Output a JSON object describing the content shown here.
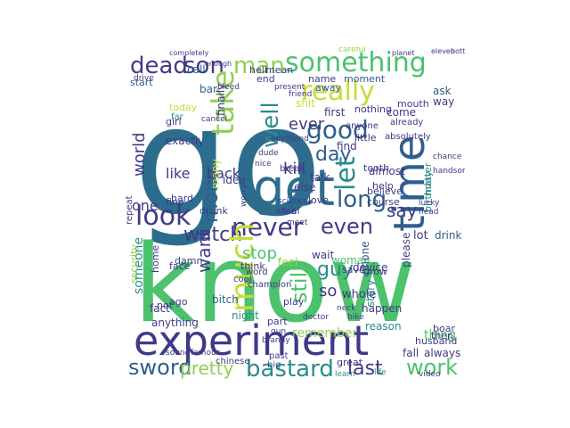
{
  "word_cloud": {
    "colors": {
      "teal_dark": "#2c6d8e",
      "green": "#4cc26d",
      "green_light": "#8fd14f",
      "purple": "#3f3a87",
      "blue": "#2e5e8c",
      "yellow": "#c7dc3a",
      "teal": "#2a8c8a"
    },
    "words": [
      {
        "text": "go",
        "color": "#2c6d8e"
      },
      {
        "text": "know",
        "color": "#4cc26d"
      },
      {
        "text": "experiment",
        "color": "#3f3a87"
      },
      {
        "text": "time",
        "color": "#2e5e8c"
      },
      {
        "text": "get",
        "color": "#2c6d8e"
      },
      {
        "text": "something",
        "color": "#4cc26d"
      },
      {
        "text": "dead",
        "color": "#3f3a87"
      },
      {
        "text": "son",
        "color": "#3f3a87"
      },
      {
        "text": "man",
        "color": "#8fd14f"
      },
      {
        "text": "really",
        "color": "#c7dc3a"
      },
      {
        "text": "take",
        "color": "#8fd14f"
      },
      {
        "text": "good",
        "color": "#2e5e8c"
      },
      {
        "text": "day",
        "color": "#2e5e8c"
      },
      {
        "text": "well",
        "color": "#2a8c8a"
      },
      {
        "text": "let",
        "color": "#2a8c8a"
      },
      {
        "text": "long",
        "color": "#2e5e8c"
      },
      {
        "text": "look",
        "color": "#3f3a87"
      },
      {
        "text": "never",
        "color": "#3f3a87"
      },
      {
        "text": "even",
        "color": "#3f3a87"
      },
      {
        "text": "watch",
        "color": "#3f3a87"
      },
      {
        "text": "much",
        "color": "#c7dc3a"
      },
      {
        "text": "mom",
        "color": "#2e5e8c"
      },
      {
        "text": "stop",
        "color": "#4cc26d"
      },
      {
        "text": "say",
        "color": "#3f3a87"
      },
      {
        "text": "guy",
        "color": "#2a8c8a"
      },
      {
        "text": "want",
        "color": "#3f3a87"
      },
      {
        "text": "still",
        "color": "#4cc26d"
      },
      {
        "text": "sword",
        "color": "#2e5e8c"
      },
      {
        "text": "pretty",
        "color": "#8fd14f"
      },
      {
        "text": "bastard",
        "color": "#2a8c8a"
      },
      {
        "text": "last",
        "color": "#3f3a87"
      },
      {
        "text": "work",
        "color": "#4cc26d"
      },
      {
        "text": "ever",
        "color": "#3f3a87"
      },
      {
        "text": "kill",
        "color": "#3f3a87"
      },
      {
        "text": "world",
        "color": "#3f3a87"
      },
      {
        "text": "like",
        "color": "#3f3a87"
      },
      {
        "text": "back",
        "color": "#3f3a87"
      },
      {
        "text": "one",
        "color": "#3f3a87"
      },
      {
        "text": "so",
        "color": "#3f3a87"
      },
      {
        "text": "remember",
        "color": "#8fd14f"
      },
      {
        "text": "someone",
        "color": "#2a8c8a"
      },
      {
        "text": "thing",
        "color": "#4cc26d"
      },
      {
        "text": "always",
        "color": "#3f3a87"
      },
      {
        "text": "reason",
        "color": "#2a8c8a"
      },
      {
        "text": "happen",
        "color": "#3f3a87"
      },
      {
        "text": "big",
        "color": "#2e5e8c"
      },
      {
        "text": "exactly",
        "color": "#3f3a87"
      },
      {
        "text": "name",
        "color": "#3f3a87"
      },
      {
        "text": "moment",
        "color": "#2e5e8c"
      },
      {
        "text": "ask",
        "color": "#2e5e8c"
      },
      {
        "text": "finally",
        "color": "#3f3a87"
      },
      {
        "text": "today",
        "color": "#c7dc3a"
      },
      {
        "text": "bar",
        "color": "#2e5e8c"
      },
      {
        "text": "call",
        "color": "#2e5e8c"
      },
      {
        "text": "hell",
        "color": "#3f3a87"
      },
      {
        "text": "mean",
        "color": "#3f3a87"
      },
      {
        "text": "end",
        "color": "#3f3a87"
      },
      {
        "text": "start",
        "color": "#2e5e8c"
      },
      {
        "text": "girl",
        "color": "#3f3a87"
      },
      {
        "text": "far",
        "color": "#2a8c8a"
      },
      {
        "text": "many",
        "color": "#c7dc3a"
      },
      {
        "text": "idea",
        "color": "#3f3a87"
      },
      {
        "text": "talk",
        "color": "#3f3a87"
      },
      {
        "text": "else",
        "color": "#3f3a87"
      },
      {
        "text": "find",
        "color": "#3f3a87"
      },
      {
        "text": "almost",
        "color": "#3f3a87"
      },
      {
        "text": "believe",
        "color": "#3f3a87"
      },
      {
        "text": "help",
        "color": "#3f3a87"
      },
      {
        "text": "love",
        "color": "#3f3a87"
      },
      {
        "text": "wait",
        "color": "#3f3a87"
      },
      {
        "text": "woman",
        "color": "#4cc26d"
      },
      {
        "text": "device",
        "color": "#3f3a87"
      },
      {
        "text": "lot",
        "color": "#3f3a87"
      },
      {
        "text": "drink",
        "color": "#2e5e8c"
      },
      {
        "text": "phone",
        "color": "#2e5e8c"
      },
      {
        "text": "please",
        "color": "#3f3a87"
      },
      {
        "text": "story",
        "color": "#2a8c8a"
      },
      {
        "text": "think",
        "color": "#3f3a87"
      },
      {
        "text": "word",
        "color": "#3f3a87"
      },
      {
        "text": "feel",
        "color": "#8fd14f"
      },
      {
        "text": "whole",
        "color": "#3f3a87"
      },
      {
        "text": "play",
        "color": "#3f3a87"
      },
      {
        "text": "save",
        "color": "#3f3a87"
      },
      {
        "text": "grow",
        "color": "#3f3a87"
      },
      {
        "text": "night",
        "color": "#2a8c8a"
      },
      {
        "text": "part",
        "color": "#3f3a87"
      },
      {
        "text": "bitch",
        "color": "#2e5e8c"
      },
      {
        "text": "anything",
        "color": "#3f3a87"
      },
      {
        "text": "fact",
        "color": "#3f3a87"
      },
      {
        "text": "fall",
        "color": "#3f3a87"
      },
      {
        "text": "great",
        "color": "#3f3a87"
      },
      {
        "text": "husband",
        "color": "#3f3a87"
      },
      {
        "text": "boar",
        "color": "#3f3a87"
      },
      {
        "text": "then",
        "color": "#3f3a87"
      },
      {
        "text": "chinese",
        "color": "#3f3a87"
      },
      {
        "text": "past",
        "color": "#3f3a87"
      },
      {
        "text": "learn",
        "color": "#2a8c8a"
      },
      {
        "text": "life",
        "color": "#2a8c8a"
      },
      {
        "text": "way",
        "color": "#3f3a87"
      },
      {
        "text": "come",
        "color": "#3f3a87"
      },
      {
        "text": "mouth",
        "color": "#3f3a87"
      },
      {
        "text": "first",
        "color": "#3f3a87"
      },
      {
        "text": "nothing",
        "color": "#3f3a87"
      },
      {
        "text": "shit",
        "color": "#c7dc3a"
      },
      {
        "text": "away",
        "color": "#2e5e8c"
      },
      {
        "text": "little",
        "color": "#3f3a87"
      },
      {
        "text": "tooth",
        "color": "#3f3a87"
      },
      {
        "text": "course",
        "color": "#3f3a87"
      },
      {
        "text": "steal",
        "color": "#3f3a87"
      },
      {
        "text": "damn",
        "color": "#3f3a87"
      },
      {
        "text": "face",
        "color": "#3f3a87"
      },
      {
        "text": "home",
        "color": "#3f3a87"
      },
      {
        "text": "ago",
        "color": "#3f3a87"
      },
      {
        "text": "not",
        "color": "#3f3a87"
      },
      {
        "text": "fine",
        "color": "#3f3a87"
      },
      {
        "text": "hard",
        "color": "#3f3a87"
      },
      {
        "text": "drunk",
        "color": "#3f3a87"
      },
      {
        "text": "security",
        "color": "#8fd14f"
      },
      {
        "text": "repeat",
        "color": "#3f3a87"
      },
      {
        "text": "birthday",
        "color": "#2a8c8a"
      },
      {
        "text": "matter",
        "color": "#2a8c8a"
      },
      {
        "text": "lab",
        "color": "#3f3a87"
      },
      {
        "text": "break",
        "color": "#3f3a87"
      },
      {
        "text": "already",
        "color": "#3f3a87"
      },
      {
        "text": "anyone",
        "color": "#3f3a87"
      },
      {
        "text": "absolutely",
        "color": "#3f3a87"
      },
      {
        "text": "eleven",
        "color": "#3f3a87"
      },
      {
        "text": "bottle",
        "color": "#3f3a87"
      },
      {
        "text": "bullet",
        "color": "#3f3a87"
      },
      {
        "text": "planet",
        "color": "#3f3a87"
      },
      {
        "text": "careful",
        "color": "#8fd14f"
      },
      {
        "text": "dude",
        "color": "#3f3a87"
      },
      {
        "text": "nice",
        "color": "#3f3a87"
      },
      {
        "text": "boyfriend",
        "color": "#3f3a87"
      },
      {
        "text": "cool",
        "color": "#3f3a87"
      },
      {
        "text": "champion",
        "color": "#3f3a87"
      },
      {
        "text": "neck",
        "color": "#3f3a87"
      },
      {
        "text": "doctor",
        "color": "#3f3a87"
      },
      {
        "text": "bike",
        "color": "#3f3a87"
      },
      {
        "text": "famous",
        "color": "#3f3a87"
      },
      {
        "text": "sound",
        "color": "#3f3a87"
      },
      {
        "text": "video",
        "color": "#3f3a87"
      },
      {
        "text": "chance",
        "color": "#3f3a87"
      },
      {
        "text": "handsome",
        "color": "#3f3a87"
      },
      {
        "text": "lucky",
        "color": "#3f3a87"
      },
      {
        "text": "head",
        "color": "#3f3a87"
      },
      {
        "text": "science",
        "color": "#3f3a87"
      },
      {
        "text": "worry",
        "color": "#3f3a87"
      },
      {
        "text": "meet",
        "color": "#3f3a87"
      },
      {
        "text": "brandy",
        "color": "#3f3a87"
      },
      {
        "text": "gun",
        "color": "#3f3a87"
      },
      {
        "text": "friend",
        "color": "#3f3a87"
      },
      {
        "text": "cancel",
        "color": "#3f3a87"
      },
      {
        "text": "bleed",
        "color": "#3f3a87"
      },
      {
        "text": "present",
        "color": "#3f3a87"
      },
      {
        "text": "drive",
        "color": "#3f3a87"
      },
      {
        "text": "enough",
        "color": "#3f3a87"
      },
      {
        "text": "completely",
        "color": "#3f3a87"
      }
    ]
  }
}
